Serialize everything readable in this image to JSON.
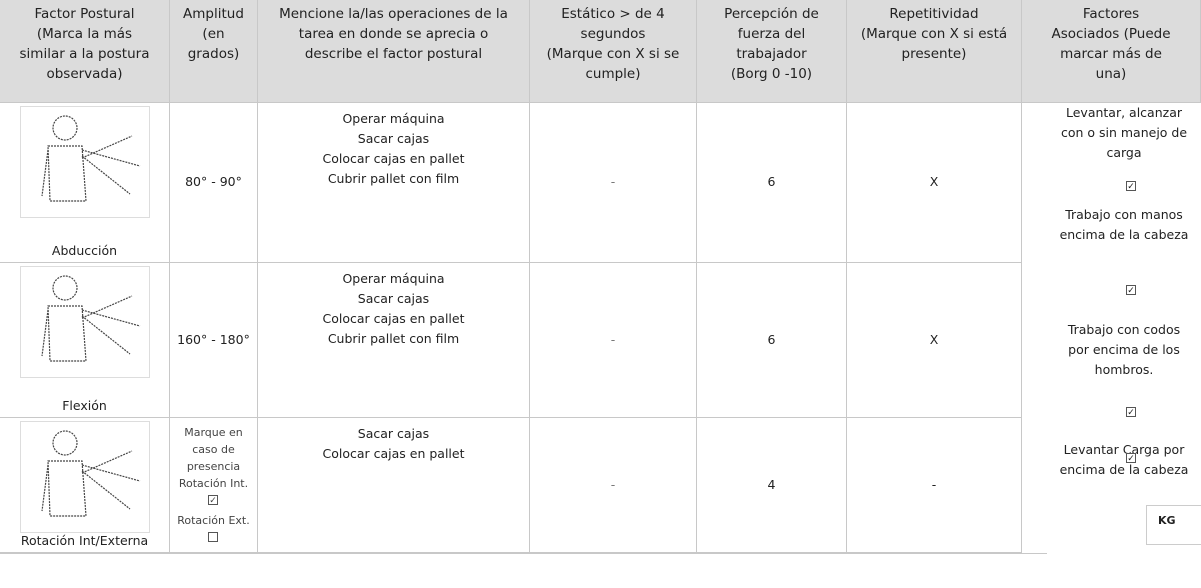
{
  "table": {
    "headers": [
      [
        "Factor Postural",
        "(Marca la más",
        "similar a la postura",
        "observada)"
      ],
      [
        "Amplitud",
        "(en",
        "grados)"
      ],
      [
        "Mencione la/las operaciones de la",
        "tarea en donde se aprecia o",
        "describe el factor postural"
      ],
      [
        "Estático > de 4",
        "segundos",
        "(Marque con X si se",
        "cumple)"
      ],
      [
        "Percepción de",
        "fuerza del",
        "trabajador",
        "(Borg 0 -10)"
      ],
      [
        "Repetitividad",
        "(Marque con X si está",
        "presente)"
      ],
      [
        "Factores",
        "Asociados (Puede",
        "marcar más de",
        "una)"
      ]
    ],
    "rows": [
      {
        "factor": "Abducción",
        "amplitude": "80° - 90°",
        "operations": [
          "Operar máquina",
          "Sacar cajas",
          "Colocar cajas en pallet",
          "Cubrir pallet con film"
        ],
        "static": "-",
        "force": 6,
        "repetition": "X"
      },
      {
        "factor": "Flexión",
        "amplitude": "160° - 180°",
        "operations": [
          "Operar máquina",
          "Sacar cajas",
          "Colocar cajas en pallet",
          "Cubrir pallet con film"
        ],
        "static": "-",
        "force": 6,
        "repetition": "X"
      },
      {
        "factor": "Rotación Int/Externa",
        "amplitude_lines": [
          "Marque en",
          "caso de",
          "presencia",
          "Rotación Int.",
          "Rotación Ext."
        ],
        "operations": [
          "Sacar cajas",
          "Colocar cajas en pallet"
        ],
        "static": "-",
        "force": 4,
        "repetition": "-"
      }
    ]
  },
  "associated_factors": [
    [
      "Levantar, alcanzar",
      "con o sin manejo de",
      "carga"
    ],
    [
      "Trabajo con manos",
      "encima de la cabeza"
    ],
    [
      "Trabajo con codos",
      "por encima de los",
      "hombros."
    ],
    [
      "Levantar Carga por",
      "encima de la cabeza"
    ]
  ],
  "weight_label": "KG"
}
